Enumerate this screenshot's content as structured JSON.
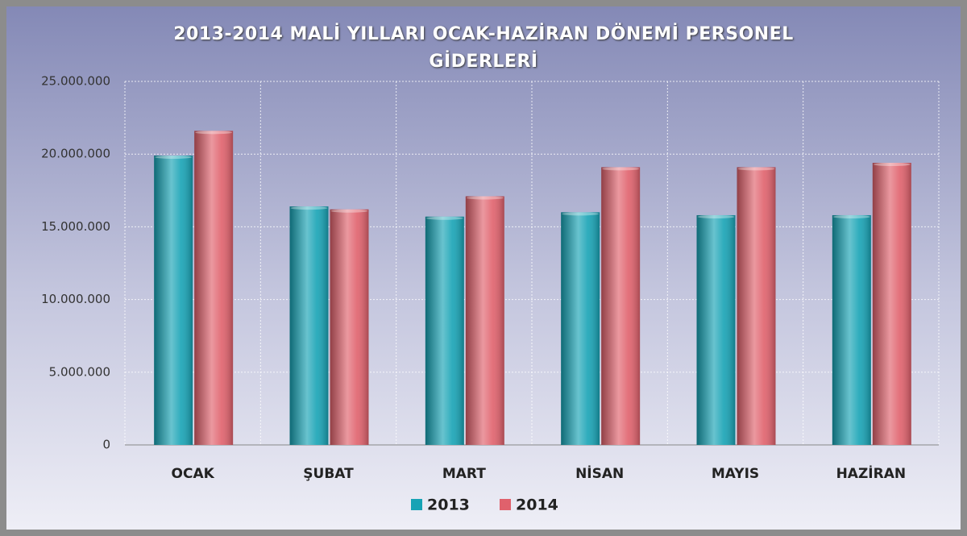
{
  "chart_data": {
    "type": "bar",
    "title": "2013-2014  MALİ YILLARI OCAK-HAZİRAN DÖNEMİ PERSONEL GİDERLERİ",
    "categories": [
      "OCAK",
      "ŞUBAT",
      "MART",
      "NİSAN",
      "MAYIS",
      "HAZİRAN"
    ],
    "series": [
      {
        "name": "2013",
        "color": "#17a3b5",
        "values": [
          19900000,
          16400000,
          15700000,
          16000000,
          15800000,
          15800000
        ]
      },
      {
        "name": "2014",
        "color": "#e0616c",
        "values": [
          21600000,
          16200000,
          17100000,
          19100000,
          19100000,
          19400000
        ]
      }
    ],
    "ylim": [
      0,
      25000000
    ],
    "yticks": [
      0,
      {
        "value": 5000000,
        "label": "5.000.000"
      },
      {
        "value": 10000000,
        "label": "10.000.000"
      },
      {
        "value": 15000000,
        "label": "15.000.000"
      },
      {
        "value": 20000000,
        "label": "20.000.000"
      },
      {
        "value": 25000000,
        "label": "25.000.000"
      }
    ],
    "grid": true,
    "legend": "bottom"
  }
}
